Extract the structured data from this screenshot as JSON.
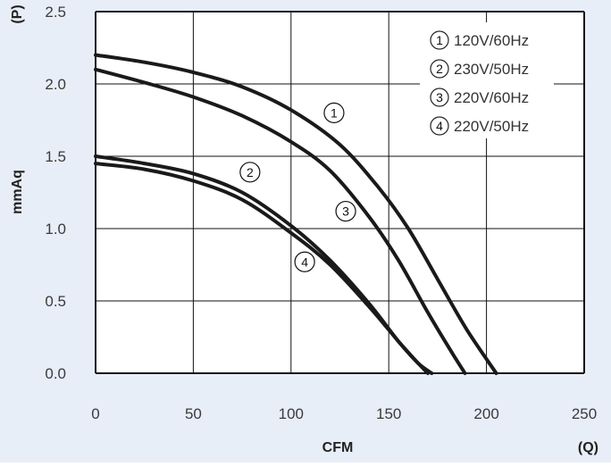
{
  "colors": {
    "panel_background": "#e8eef8",
    "plot_background": "#ffffff",
    "grid": "#111111",
    "curve": "#1a1a1a"
  },
  "chart_data": {
    "type": "line",
    "xlabel": "CFM",
    "xlabel_unit": "(Q)",
    "ylabel": "mmAq",
    "ylabel_unit": "(P)",
    "xlim": [
      0,
      250
    ],
    "ylim": [
      0,
      2.5
    ],
    "xticks": [
      "0",
      "50",
      "100",
      "150",
      "200",
      "250"
    ],
    "yticks": [
      "0.0",
      "0.5",
      "1.0",
      "1.5",
      "2.0",
      "2.5"
    ],
    "grid": true,
    "legend_position": "top-right",
    "series": [
      {
        "name": "120V/60Hz",
        "marker": "1",
        "x": [
          0,
          25,
          50,
          75,
          100,
          125,
          145,
          160,
          175,
          190,
          205
        ],
        "y": [
          2.2,
          2.15,
          2.08,
          1.98,
          1.82,
          1.58,
          1.28,
          1.0,
          0.65,
          0.3,
          0.0
        ],
        "label_at": [
          122,
          1.8
        ]
      },
      {
        "name": "230V/50Hz",
        "marker": "2",
        "x": [
          0,
          25,
          50,
          75,
          100,
          120,
          140,
          155,
          165,
          172
        ],
        "y": [
          1.5,
          1.45,
          1.38,
          1.25,
          1.02,
          0.78,
          0.48,
          0.22,
          0.07,
          0.0
        ],
        "label_at": [
          79,
          1.39
        ]
      },
      {
        "name": "220V/60Hz",
        "marker": "3",
        "x": [
          0,
          25,
          50,
          75,
          100,
          120,
          140,
          155,
          170,
          182,
          189
        ],
        "y": [
          2.1,
          2.01,
          1.91,
          1.78,
          1.6,
          1.4,
          1.08,
          0.78,
          0.42,
          0.15,
          0.0
        ],
        "label_at": [
          128,
          1.12
        ]
      },
      {
        "name": "220V/50Hz",
        "marker": "4",
        "x": [
          0,
          25,
          50,
          75,
          100,
          120,
          140,
          155,
          165,
          170
        ],
        "y": [
          1.45,
          1.41,
          1.33,
          1.2,
          0.97,
          0.75,
          0.46,
          0.22,
          0.07,
          0.0
        ],
        "label_at": [
          107,
          0.77
        ]
      }
    ]
  }
}
